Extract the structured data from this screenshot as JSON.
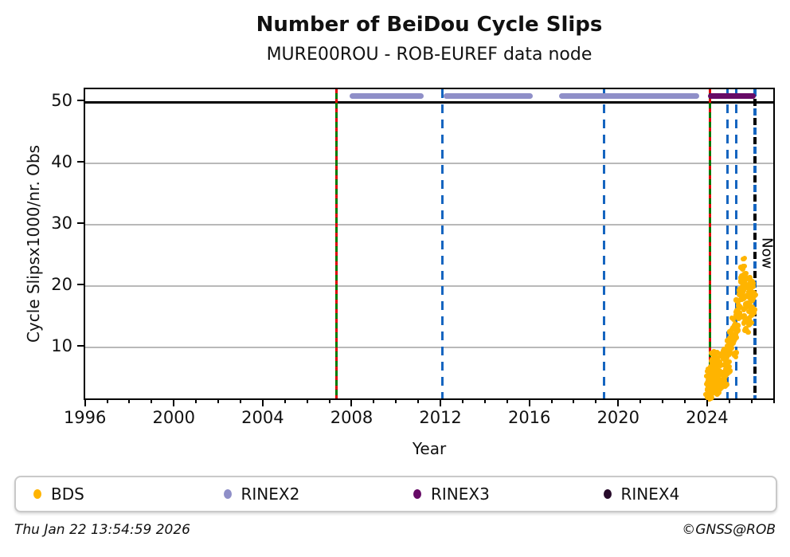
{
  "title": "Number of BeiDou Cycle Slips",
  "subtitle": "MURE00ROU - ROB-EUREF data node",
  "footer": {
    "timestamp": "Thu Jan 22 13:54:59 2026",
    "credit": "©GNSS@ROB"
  },
  "legend": {
    "items": [
      {
        "label": "BDS",
        "color": "#ffb400"
      },
      {
        "label": "RINEX2",
        "color": "#8f8fc8"
      },
      {
        "label": "RINEX3",
        "color": "#660a66"
      },
      {
        "label": "RINEX4",
        "color": "#270b2b"
      }
    ]
  },
  "chart_data": {
    "type": "scatter",
    "title": "Number of BeiDou Cycle Slips",
    "subtitle": "MURE00ROU - ROB-EUREF data node",
    "xlabel": "Year",
    "ylabel": "Cycle Slipsx1000/nr. Obs",
    "xlim": [
      1995.94,
      2027.05
    ],
    "ylim": [
      1.1,
      52.1
    ],
    "xticks_major": [
      1996,
      2000,
      2004,
      2008,
      2012,
      2016,
      2020,
      2024
    ],
    "xtick_minor_step": 1,
    "yticks": [
      10,
      20,
      30,
      40,
      50
    ],
    "grid": "horizontal",
    "grid_color": "#b9b9b9",
    "cap_line_value": 50,
    "now_label": "Now",
    "event_lines": [
      {
        "year": 2007.26,
        "style": "greenred",
        "colors": [
          "#007a00",
          "#dd0000"
        ]
      },
      {
        "year": 2012.01,
        "style": "blue",
        "colors": [
          "#1565c0"
        ]
      },
      {
        "year": 2019.29,
        "style": "blue",
        "colors": [
          "#1565c0"
        ]
      },
      {
        "year": 2024.04,
        "style": "greenred",
        "colors": [
          "#007a00",
          "#dd0000"
        ]
      },
      {
        "year": 2024.86,
        "style": "blue",
        "colors": [
          "#1565c0"
        ]
      },
      {
        "year": 2025.24,
        "style": "blue",
        "colors": [
          "#1565c0"
        ]
      },
      {
        "year": 2026.06,
        "style": "now",
        "colors": [
          "#1565c0",
          "#000000"
        ]
      }
    ],
    "series": [
      {
        "name": "RINEX2",
        "color": "#8f8fc8",
        "type": "runs",
        "value": 51,
        "runs": [
          [
            2007.83,
            2011.16
          ],
          [
            2012.06,
            2016.1
          ],
          [
            2017.25,
            2023.59
          ]
        ]
      },
      {
        "name": "RINEX3",
        "color": "#660a66",
        "type": "runs",
        "value": 51,
        "runs": [
          [
            2023.95,
            2026.13
          ]
        ]
      },
      {
        "name": "RINEX4",
        "color": "#270b2b",
        "type": "runs",
        "value": 51,
        "runs": []
      },
      {
        "name": "BDS",
        "color": "#ffb400",
        "type": "points",
        "points": [
          [
            2023.93,
            2.0
          ],
          [
            2023.94,
            3.1
          ],
          [
            2023.95,
            1.8
          ],
          [
            2023.96,
            4.2
          ],
          [
            2023.97,
            2.6
          ],
          [
            2023.98,
            5.0
          ],
          [
            2023.99,
            3.5
          ],
          [
            2024.0,
            1.5
          ],
          [
            2024.0,
            4.8
          ],
          [
            2024.01,
            2.2
          ],
          [
            2024.02,
            5.8
          ],
          [
            2024.02,
            3.0
          ],
          [
            2024.03,
            1.9
          ],
          [
            2024.04,
            4.4
          ],
          [
            2024.05,
            2.8
          ],
          [
            2024.05,
            6.2
          ],
          [
            2024.06,
            3.8
          ],
          [
            2024.07,
            1.6
          ],
          [
            2024.07,
            5.2
          ],
          [
            2024.08,
            2.4
          ],
          [
            2024.1,
            3.2
          ],
          [
            2024.1,
            6.8
          ],
          [
            2024.12,
            2.5
          ],
          [
            2024.13,
            5.5
          ],
          [
            2024.14,
            8.0
          ],
          [
            2024.15,
            4.0
          ],
          [
            2024.16,
            6.5
          ],
          [
            2024.17,
            2.8
          ],
          [
            2024.18,
            7.5
          ],
          [
            2024.19,
            5.0
          ],
          [
            2024.2,
            8.8
          ],
          [
            2024.21,
            3.5
          ],
          [
            2024.22,
            6.0
          ],
          [
            2024.23,
            9.2
          ],
          [
            2024.24,
            4.5
          ],
          [
            2024.25,
            7.2
          ],
          [
            2024.26,
            2.9
          ],
          [
            2024.27,
            5.8
          ],
          [
            2024.28,
            8.4
          ],
          [
            2024.29,
            3.9
          ],
          [
            2024.3,
            6.6
          ],
          [
            2024.31,
            9.0
          ],
          [
            2024.32,
            4.8
          ],
          [
            2024.33,
            7.8
          ],
          [
            2024.34,
            3.1
          ],
          [
            2024.35,
            5.4
          ],
          [
            2024.36,
            8.1
          ],
          [
            2024.38,
            4.2
          ],
          [
            2024.4,
            6.9
          ],
          [
            2024.41,
            2.6
          ],
          [
            2024.43,
            5.1
          ],
          [
            2024.44,
            7.4
          ],
          [
            2024.46,
            3.6
          ],
          [
            2024.48,
            6.1
          ],
          [
            2024.5,
            4.6
          ],
          [
            2024.52,
            7.0
          ],
          [
            2024.54,
            3.3
          ],
          [
            2024.56,
            5.6
          ],
          [
            2024.58,
            4.1
          ],
          [
            2024.6,
            5.9
          ],
          [
            2024.62,
            8.6
          ],
          [
            2024.64,
            4.4
          ],
          [
            2024.66,
            7.1
          ],
          [
            2024.68,
            9.6
          ],
          [
            2024.7,
            5.2
          ],
          [
            2024.72,
            7.9
          ],
          [
            2024.74,
            3.8
          ],
          [
            2024.76,
            6.4
          ],
          [
            2024.78,
            9.1
          ],
          [
            2024.8,
            5.7
          ],
          [
            2024.82,
            8.3
          ],
          [
            2024.84,
            10.2
          ],
          [
            2024.86,
            6.7
          ],
          [
            2024.88,
            9.4
          ],
          [
            2024.9,
            7.6
          ],
          [
            2024.92,
            10.8
          ],
          [
            2024.94,
            8.9
          ],
          [
            2024.95,
            11.5
          ],
          [
            2024.96,
            6.2
          ],
          [
            2024.98,
            9.8
          ],
          [
            2025.0,
            12.2
          ],
          [
            2025.02,
            10.5
          ],
          [
            2025.04,
            12.8
          ],
          [
            2025.08,
            13.2
          ],
          [
            2025.1,
            11.0
          ],
          [
            2025.12,
            14.5
          ],
          [
            2025.14,
            12.0
          ],
          [
            2025.16,
            9.0
          ],
          [
            2025.18,
            13.8
          ],
          [
            2025.2,
            11.6
          ],
          [
            2025.22,
            8.4
          ],
          [
            2025.24,
            15.2
          ],
          [
            2025.26,
            12.6
          ],
          [
            2025.28,
            16.0
          ],
          [
            2025.3,
            13.5
          ],
          [
            2025.32,
            17.4
          ],
          [
            2025.34,
            14.8
          ],
          [
            2025.36,
            18.6
          ],
          [
            2025.38,
            15.6
          ],
          [
            2025.4,
            19.5
          ],
          [
            2025.42,
            16.5
          ],
          [
            2025.44,
            20.8
          ],
          [
            2025.46,
            17.8
          ],
          [
            2025.48,
            21.6
          ],
          [
            2025.5,
            18.9
          ],
          [
            2025.52,
            22.8
          ],
          [
            2025.52,
            15.0
          ],
          [
            2025.54,
            24.4
          ],
          [
            2025.55,
            20.2
          ],
          [
            2025.56,
            23.2
          ],
          [
            2025.58,
            19.2
          ],
          [
            2025.58,
            16.2
          ],
          [
            2025.6,
            21.9
          ],
          [
            2025.62,
            18.2
          ],
          [
            2025.62,
            14.2
          ],
          [
            2025.64,
            20.5
          ],
          [
            2025.66,
            17.0
          ],
          [
            2025.68,
            19.8
          ],
          [
            2025.68,
            13.0
          ],
          [
            2025.7,
            16.8
          ],
          [
            2025.72,
            21.2
          ],
          [
            2025.74,
            18.5
          ],
          [
            2025.74,
            14.6
          ],
          [
            2025.76,
            20.0
          ],
          [
            2025.78,
            17.2
          ],
          [
            2025.78,
            12.4
          ],
          [
            2025.8,
            19.0
          ],
          [
            2025.82,
            15.8
          ],
          [
            2025.84,
            21.4
          ],
          [
            2025.84,
            13.9
          ],
          [
            2025.86,
            18.0
          ],
          [
            2025.88,
            20.6
          ],
          [
            2025.88,
            16.4
          ],
          [
            2025.9,
            19.4
          ],
          [
            2025.92,
            17.6
          ],
          [
            2025.92,
            14.0
          ],
          [
            2025.94,
            20.3
          ],
          [
            2025.96,
            18.8
          ],
          [
            2025.96,
            15.4
          ],
          [
            2025.98,
            17.9
          ],
          [
            2026.0,
            19.9
          ],
          [
            2026.0,
            16.0
          ],
          [
            2026.02,
            18.4
          ],
          [
            2026.04,
            15.7
          ]
        ]
      }
    ]
  }
}
